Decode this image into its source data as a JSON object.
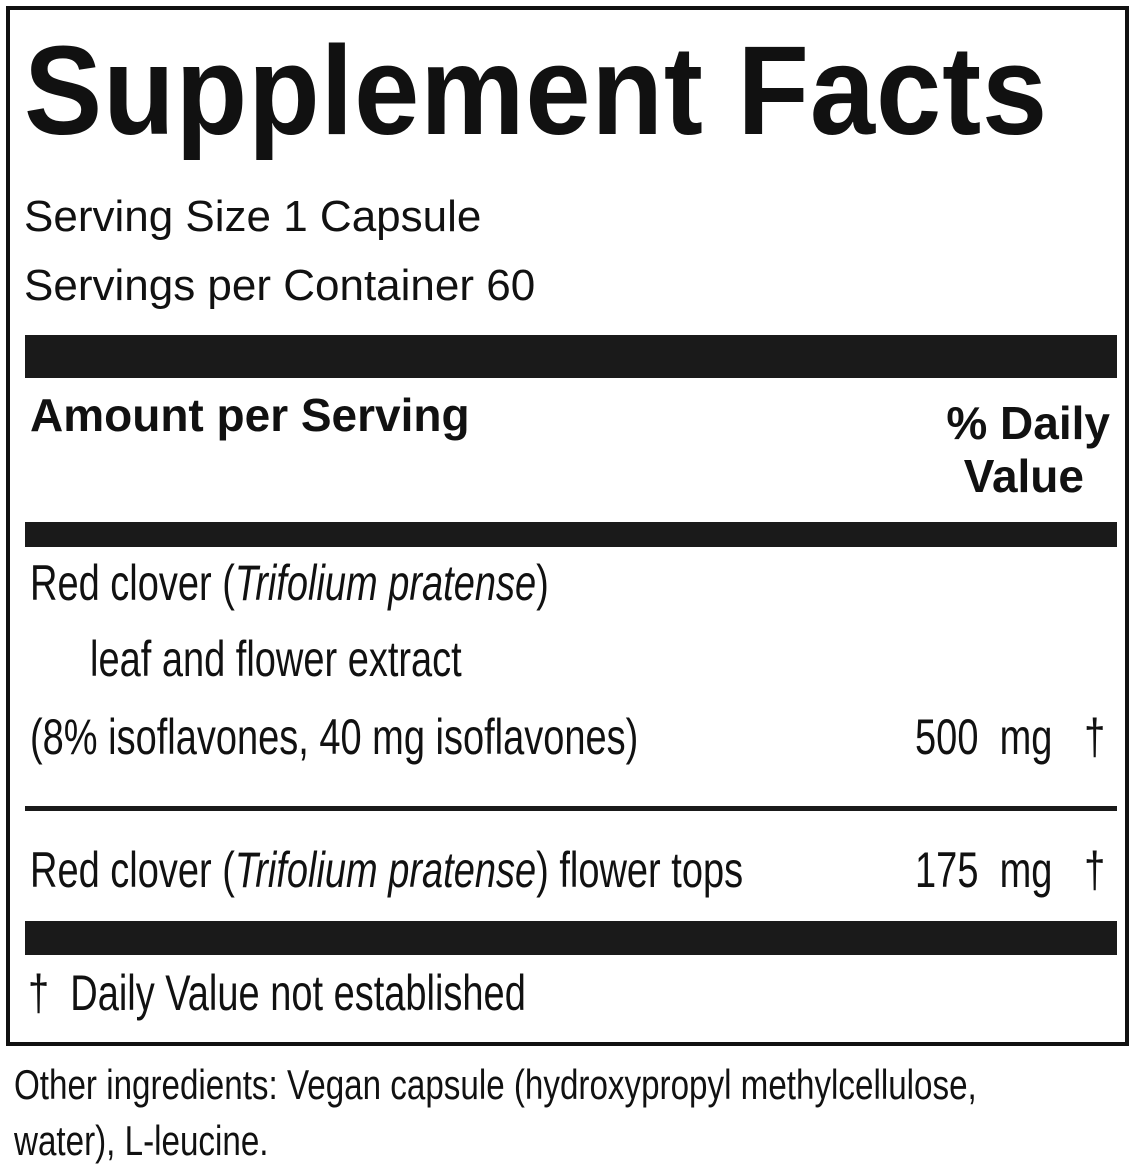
{
  "title": "Supplement Facts",
  "serving_size": "Serving Size 1 Capsule",
  "servings_per_container": "Servings per Container 60",
  "header": {
    "amount_label": "Amount per Serving",
    "dv_line1": "% Daily",
    "dv_line2": "Value"
  },
  "rows": [
    {
      "name_prefix": "Red clover (",
      "latin": "Trifolium pratense",
      "name_suffix": ")",
      "line2": "leaf and flower extract",
      "line3": "(8% isoflavones, 40 mg isoflavones)",
      "amount": "500",
      "unit": "mg",
      "dv": "†"
    },
    {
      "name_prefix": "Red clover (",
      "latin": "Trifolium pratense",
      "name_suffix": ") flower tops",
      "amount": "175",
      "unit": "mg",
      "dv": "†"
    }
  ],
  "footnote": "†  Daily Value not established",
  "other_ingredients_line1": "Other ingredients: Vegan capsule (hydroxypropyl methylcellulose,",
  "other_ingredients_line2": "water), L-leucine."
}
